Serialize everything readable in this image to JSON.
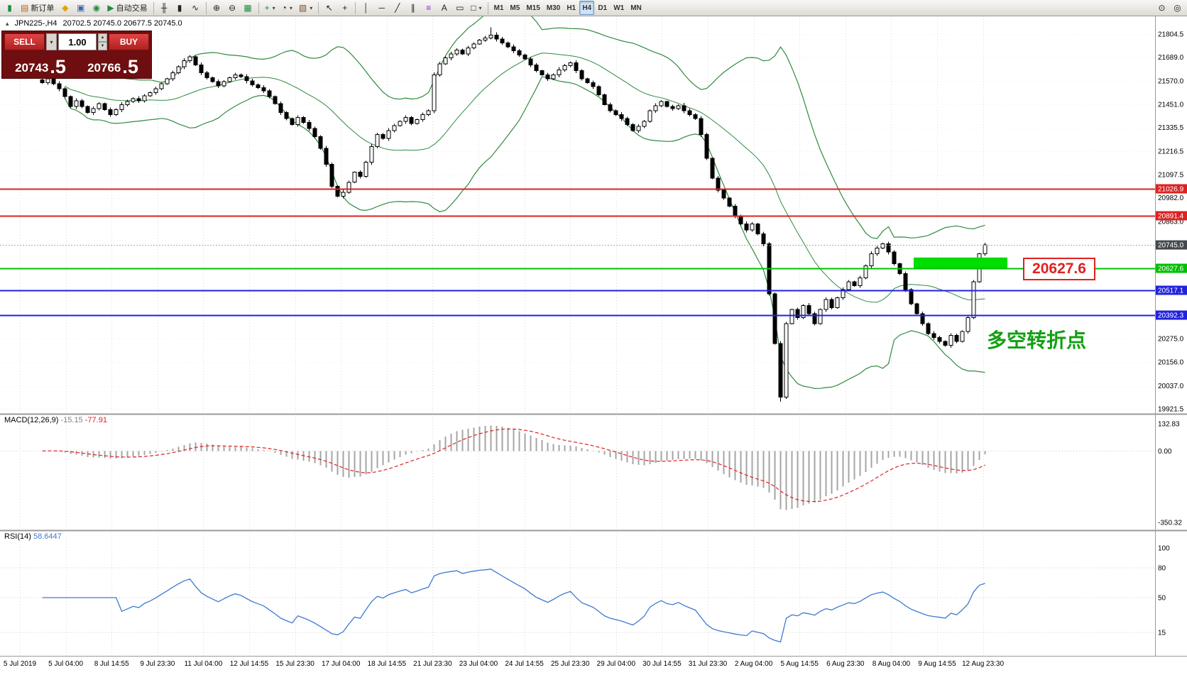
{
  "toolbar": {
    "groups": [
      [
        {
          "name": "app-chart-icon",
          "glyph": "▮",
          "fg": "#1e8c3c"
        },
        {
          "name": "new-order-button",
          "glyph": "▤",
          "fg": "#b5651d",
          "label": "新订单"
        },
        {
          "name": "favorites-icon",
          "glyph": "◆",
          "fg": "#e0a400"
        },
        {
          "name": "chart-window-icon",
          "glyph": "▣",
          "fg": "#3a66a8"
        },
        {
          "name": "alerts-icon",
          "glyph": "◉",
          "fg": "#1e8c3c"
        },
        {
          "name": "autotrade-button",
          "glyph": "▶",
          "fg": "#1e8c3c",
          "label": "自动交易"
        }
      ],
      [
        {
          "name": "bar-chart-mode-icon",
          "glyph": "╫"
        },
        {
          "name": "candlestick-mode-icon",
          "glyph": "▮"
        },
        {
          "name": "line-chart-mode-icon",
          "glyph": "∿"
        }
      ],
      [
        {
          "name": "zoom-in-icon",
          "glyph": "⊕"
        },
        {
          "name": "zoom-out-icon",
          "glyph": "⊖"
        },
        {
          "name": "tile-windows-icon",
          "glyph": "▦",
          "fg": "#1e8c3c"
        }
      ],
      [
        {
          "name": "indicators-menu",
          "glyph": "+",
          "fg": "#1e8c3c",
          "dropdown": true
        },
        {
          "name": "periods-menu",
          "glyph": "◔",
          "dropdown": true
        },
        {
          "name": "templates-menu",
          "glyph": "▧",
          "fg": "#7a5230",
          "dropdown": true
        }
      ],
      [
        {
          "name": "cursor-tool",
          "glyph": "↖"
        },
        {
          "name": "crosshair-tool",
          "glyph": "+"
        }
      ],
      [
        {
          "name": "vertical-line-tool",
          "glyph": "│"
        },
        {
          "name": "horizontal-line-tool",
          "glyph": "─"
        },
        {
          "name": "trendline-tool",
          "glyph": "╱"
        },
        {
          "name": "channel-tool",
          "glyph": "∥"
        },
        {
          "name": "fibonacci-tool",
          "glyph": "≡",
          "fg": "#8a2be2"
        },
        {
          "name": "text-tool",
          "glyph": "A"
        },
        {
          "name": "label-tool",
          "glyph": "▭"
        },
        {
          "name": "shapes-menu",
          "glyph": "□",
          "dropdown": true
        }
      ]
    ],
    "timeframes": [
      "M1",
      "M5",
      "M15",
      "M30",
      "H1",
      "H4",
      "D1",
      "W1",
      "MN"
    ],
    "active_timeframe": "H4",
    "right_icons": [
      {
        "name": "search-icon",
        "glyph": "⊙"
      },
      {
        "name": "magnifier-icon",
        "glyph": "◎"
      }
    ]
  },
  "chart_header": {
    "symbol_timeframe": "JPN225-,H4",
    "ohlc": "20702.5 20745.0 20677.5 20745.0"
  },
  "trade_panel": {
    "sell_label": "SELL",
    "buy_label": "BUY",
    "volume": "1.00",
    "sell_price_main": "20743",
    "sell_price_frac": ".5",
    "buy_price_main": "20766",
    "buy_price_frac": ".5"
  },
  "annotations": {
    "price_callout": "20627.6",
    "turning_point_text": "多空转折点"
  },
  "indicators": {
    "macd": {
      "label": "MACD(12,26,9)",
      "value_main": "-15.15",
      "value_signal": "-77.91",
      "fast": 12,
      "slow": 26,
      "signal": 9,
      "axis_labels": [
        132.83,
        0,
        -350.32
      ]
    },
    "rsi": {
      "label": "RSI(14)",
      "value": "58.6447",
      "period": 14,
      "axis_labels": [
        100,
        80,
        50,
        15
      ],
      "levels": [
        80,
        50,
        15
      ]
    }
  },
  "chart_data": {
    "type": "candlestick",
    "symbol": "JPN225-",
    "timeframe": "H4",
    "last_ohlc": {
      "open": 20702.5,
      "high": 20745.0,
      "low": 20677.5,
      "close": 20745.0
    },
    "closes": [
      21560,
      21580,
      21555,
      21530,
      21490,
      21440,
      21470,
      21440,
      21410,
      21430,
      21455,
      21425,
      21400,
      21425,
      21450,
      21465,
      21480,
      21470,
      21495,
      21510,
      21530,
      21555,
      21580,
      21610,
      21640,
      21670,
      21690,
      21650,
      21610,
      21585,
      21565,
      21545,
      21565,
      21585,
      21600,
      21590,
      21570,
      21550,
      21535,
      21520,
      21490,
      21455,
      21410,
      21380,
      21350,
      21385,
      21360,
      21330,
      21290,
      21230,
      21150,
      21040,
      20990,
      21010,
      21060,
      21110,
      21090,
      21160,
      21240,
      21300,
      21280,
      21320,
      21345,
      21365,
      21385,
      21355,
      21375,
      21400,
      21420,
      21600,
      21655,
      21685,
      21705,
      21725,
      21705,
      21735,
      21755,
      21775,
      21785,
      21800,
      21780,
      21760,
      21740,
      21720,
      21700,
      21680,
      21650,
      21620,
      21600,
      21580,
      21600,
      21625,
      21645,
      21660,
      21620,
      21580,
      21560,
      21540,
      21500,
      21450,
      21420,
      21400,
      21380,
      21350,
      21320,
      21340,
      21365,
      21420,
      21445,
      21465,
      21440,
      21430,
      21445,
      21420,
      21400,
      21380,
      21300,
      21180,
      21080,
      21020,
      20980,
      20940,
      20890,
      20850,
      20820,
      20850,
      20800,
      20750,
      20500,
      20250,
      19980,
      20350,
      20420,
      20380,
      20440,
      20400,
      20350,
      20420,
      20470,
      20430,
      20480,
      20520,
      20560,
      20540,
      20580,
      20640,
      20700,
      20730,
      20750,
      20710,
      20650,
      20600,
      20520,
      20450,
      20400,
      20350,
      20300,
      20280,
      20260,
      20240,
      20290,
      20260,
      20310,
      20380,
      20560,
      20700,
      20745
    ],
    "bollinger": {
      "period": 20,
      "deviation": 2,
      "color": "#2e8b3e"
    },
    "hlines": [
      {
        "price": 21026.9,
        "label": "21026.9",
        "color": "#dd2222"
      },
      {
        "price": 20891.4,
        "label": "20891.4",
        "color": "#dd2222"
      },
      {
        "price": 20627.6,
        "label": "20627.6",
        "color": "#00c000"
      },
      {
        "price": 20517.1,
        "label": "20517.1",
        "color": "#2222dd"
      },
      {
        "price": 20392.3,
        "label": "20392.3",
        "color": "#2222dd"
      }
    ],
    "current_price": {
      "value": 20745.0,
      "label": "20745.0",
      "color": "#45494d"
    },
    "highlight_rect": {
      "bar_start": 153.5,
      "bar_end": 170,
      "price_top": 20682,
      "price_bottom": 20626,
      "color": "#00dd00"
    },
    "price_axis": {
      "ref_price": 21804.5,
      "points_per_pixel": 3.5663,
      "plain_labels": [
        21804.5,
        21689.0,
        21570.0,
        21451.0,
        21335.5,
        21216.5,
        21097.5,
        20982.0,
        20863.0,
        20275.0,
        20156.0,
        20037.0,
        19921.5
      ]
    },
    "time_axis": [
      "5 Jul 2019",
      "5 Jul 04:00",
      "8 Jul 14:55",
      "9 Jul 23:30",
      "11 Jul 04:00",
      "12 Jul 14:55",
      "15 Jul 23:30",
      "17 Jul 04:00",
      "18 Jul 14:55",
      "21 Jul 23:30",
      "23 Jul 04:00",
      "24 Jul 14:55",
      "25 Jul 23:30",
      "29 Jul 04:00",
      "30 Jul 14:55",
      "31 Jul 23:30",
      "2 Aug 04:00",
      "5 Aug 14:55",
      "6 Aug 23:30",
      "8 Aug 04:00",
      "9 Aug 14:55",
      "12 Aug 23:30"
    ]
  }
}
